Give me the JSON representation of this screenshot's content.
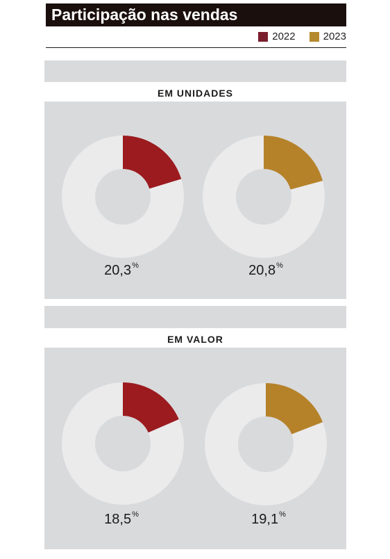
{
  "title": "Participação nas vendas",
  "legend": [
    {
      "label": "2022",
      "color": "#7a1f2e"
    },
    {
      "label": "2023",
      "color": "#b58a2f"
    }
  ],
  "chart_data": [
    {
      "type": "pie",
      "title": "EM UNIDADES",
      "unit": "%",
      "series": [
        {
          "name": "2022",
          "value": 20.3,
          "label": "20,3",
          "color": "#9b1b1f"
        },
        {
          "name": "2023",
          "value": 20.8,
          "label": "20,8",
          "color": "#b5822a"
        }
      ]
    },
    {
      "type": "pie",
      "title": "EM VALOR",
      "unit": "%",
      "series": [
        {
          "name": "2022",
          "value": 18.5,
          "label": "18,5",
          "color": "#9b1b1f"
        },
        {
          "name": "2023",
          "value": 19.1,
          "label": "19,1",
          "color": "#b5822a"
        }
      ]
    }
  ]
}
